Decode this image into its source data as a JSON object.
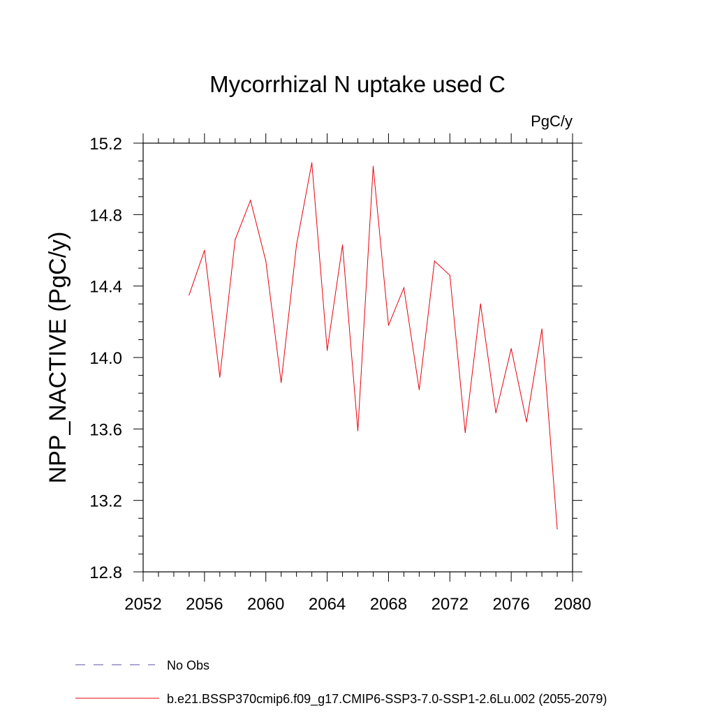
{
  "chart_data": {
    "type": "line",
    "title": "Mycorrhizal N uptake used C",
    "units_label": "PgC/y",
    "ylabel": "NPP_NACTIVE  (PgC/y)",
    "xlabel": "",
    "xlim": [
      2052,
      2080
    ],
    "ylim": [
      12.8,
      15.2
    ],
    "x_ticks": [
      2052,
      2056,
      2060,
      2064,
      2068,
      2072,
      2076,
      2080
    ],
    "x_tick_labels": [
      "2052",
      "2056",
      "2060",
      "2064",
      "2068",
      "2072",
      "2076",
      "2080"
    ],
    "y_ticks": [
      12.8,
      13.2,
      13.6,
      14.0,
      14.4,
      14.8,
      15.2
    ],
    "y_tick_labels": [
      "12.8",
      "13.2",
      "13.6",
      "14.0",
      "14.4",
      "14.8",
      "15.2"
    ],
    "x_minor_step": 1,
    "y_minor_step": 0.1,
    "grid": false,
    "series": [
      {
        "name": "b.e21.BSSP370cmip6.f09_g17.CMIP6-SSP3-7.0-SSP1-2.6Lu.002 (2055-2079)",
        "color": "#e8000b",
        "x": [
          2055,
          2056,
          2057,
          2058,
          2059,
          2060,
          2061,
          2062,
          2063,
          2064,
          2065,
          2066,
          2067,
          2068,
          2069,
          2070,
          2071,
          2072,
          2073,
          2074,
          2075,
          2076,
          2077,
          2078,
          2079
        ],
        "values": [
          14.35,
          14.6,
          13.89,
          14.66,
          14.88,
          14.54,
          13.86,
          14.63,
          15.09,
          14.04,
          14.63,
          13.59,
          15.07,
          14.18,
          14.39,
          13.82,
          14.54,
          14.46,
          13.58,
          14.3,
          13.69,
          14.05,
          13.64,
          14.16,
          13.04
        ]
      }
    ],
    "legend": {
      "placement": "bottom-left",
      "entries": [
        {
          "label": "No Obs",
          "color": "#5a4fa0",
          "style": "dashed"
        },
        {
          "label": "b.e21.BSSP370cmip6.f09_g17.CMIP6-SSP3-7.0-SSP1-2.6Lu.002 (2055-2079)",
          "color": "#e8000b",
          "style": "solid"
        }
      ]
    }
  }
}
